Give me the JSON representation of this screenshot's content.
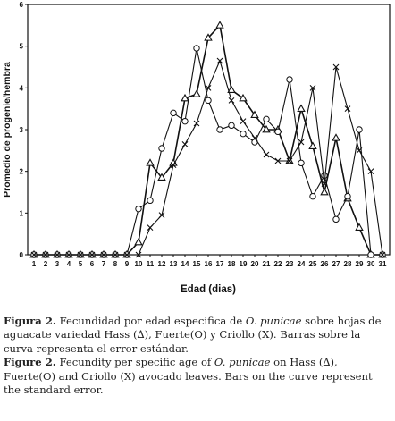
{
  "chart_data": {
    "type": "line",
    "xlabel": "Edad (dias)",
    "ylabel": "Promedio de progenie/hembra",
    "categories": [
      "1",
      "2",
      "3",
      "4",
      "5",
      "6",
      "7",
      "8",
      "9",
      "10",
      "11",
      "12",
      "13",
      "14",
      "15",
      "16",
      "17",
      "18",
      "19",
      "20",
      "21",
      "22",
      "23",
      "24",
      "25",
      "26",
      "27",
      "28",
      "29",
      "30",
      "31"
    ],
    "ylim": [
      0,
      6
    ],
    "yticks": [
      0,
      1,
      2,
      3,
      4,
      5,
      6
    ],
    "series": [
      {
        "name": "Hass",
        "marker": "triangle",
        "values": [
          0,
          0,
          0,
          0,
          0,
          0,
          0,
          0,
          0,
          0.3,
          2.2,
          1.85,
          2.2,
          3.75,
          3.85,
          5.2,
          5.5,
          3.95,
          3.75,
          3.35,
          3.0,
          3.0,
          2.25,
          3.5,
          2.6,
          1.5,
          2.8,
          1.35,
          0.65,
          0,
          0
        ]
      },
      {
        "name": "Fuerte",
        "marker": "circle",
        "values": [
          0,
          0,
          0,
          0,
          0,
          0,
          0,
          0,
          0,
          1.1,
          1.3,
          2.55,
          3.4,
          3.2,
          4.95,
          3.7,
          3.0,
          3.1,
          2.9,
          2.7,
          3.25,
          2.95,
          4.2,
          2.2,
          1.4,
          1.9,
          0.85,
          1.4,
          3.0,
          0,
          0
        ]
      },
      {
        "name": "Criollo",
        "marker": "x",
        "values": [
          0,
          0,
          0,
          0,
          0,
          0,
          0,
          0,
          0,
          0,
          0.65,
          0.95,
          2.15,
          2.65,
          3.15,
          4.0,
          4.65,
          3.7,
          3.2,
          2.8,
          2.4,
          2.25,
          2.25,
          2.7,
          4.0,
          1.7,
          4.5,
          3.5,
          2.5,
          2.0,
          0
        ]
      }
    ],
    "grid": false,
    "legend": "none"
  },
  "caption": {
    "es_label": "Figura 2.",
    "es_text_a": " Fecundidad por edad especifica de ",
    "es_species": "O. punicae",
    "es_text_b": " sobre hojas de aguacate variedad Hass (∆), Fuerte(O) y Criollo (X). Barras sobre la curva representa el error estándar.",
    "en_label": "Figure 2.",
    "en_text_a": " Fecundity per specific age of ",
    "en_species": "O. punicae",
    "en_text_b": " on Hass (∆), Fuerte(O) and Criollo (X) avocado leaves. Bars on the curve represent the standard error."
  }
}
